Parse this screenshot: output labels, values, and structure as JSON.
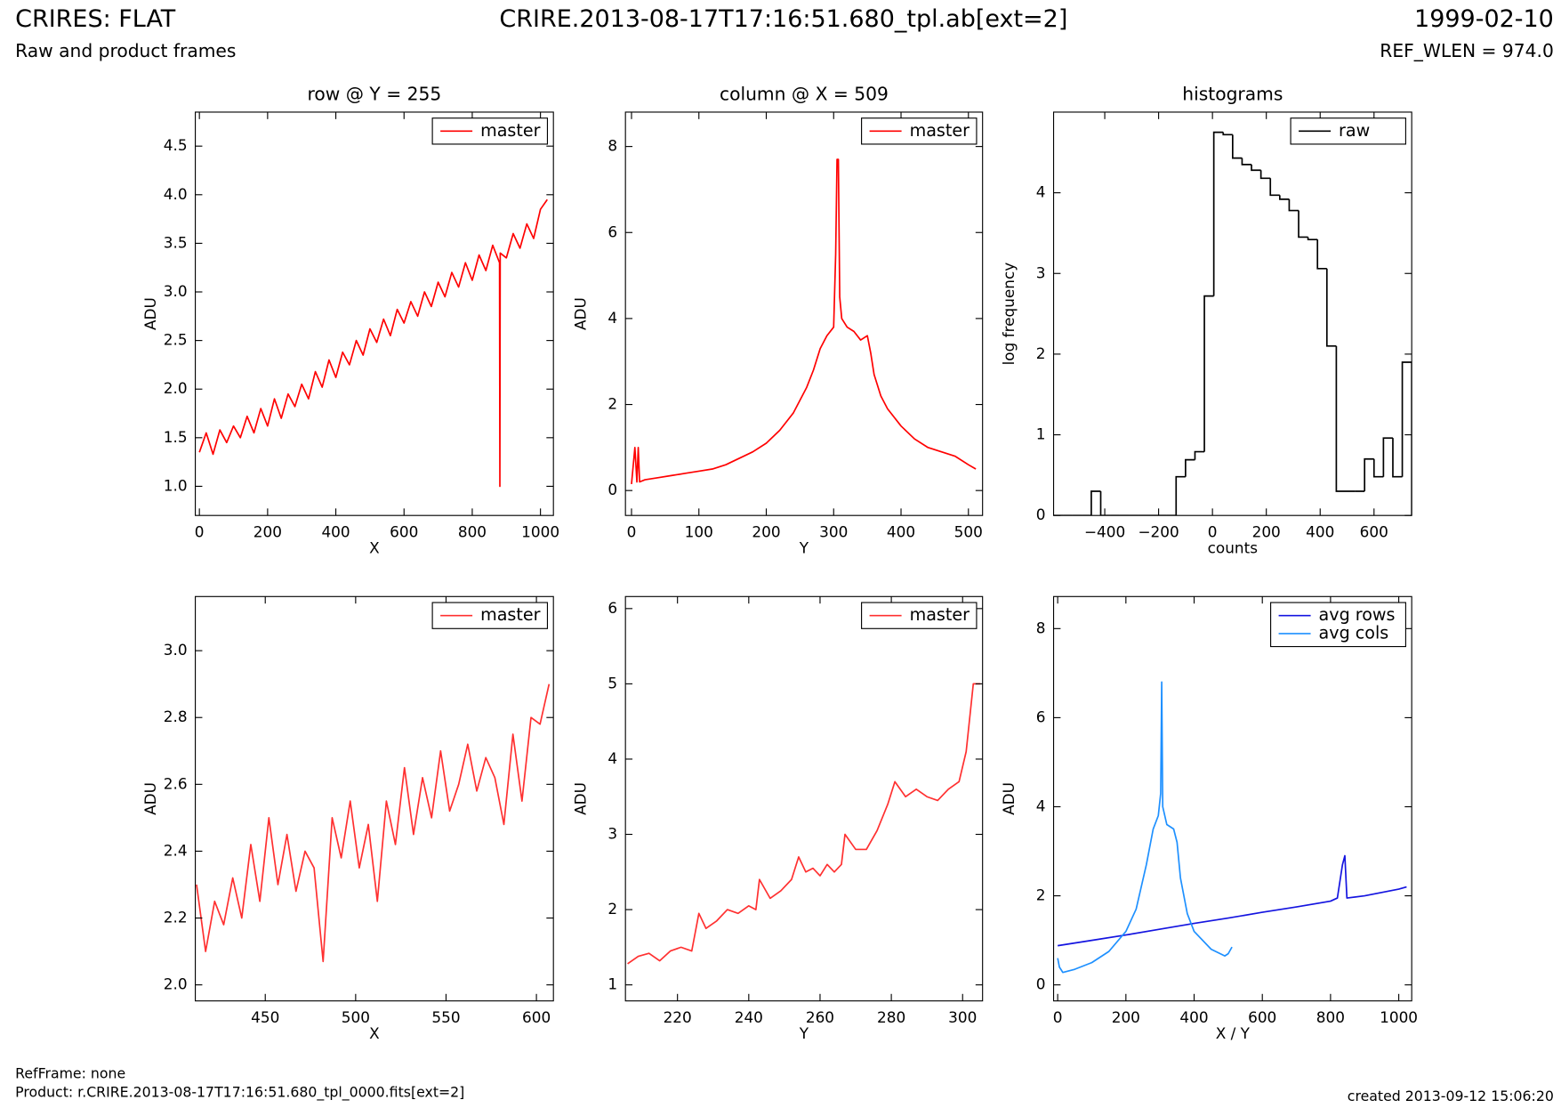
{
  "header": {
    "title": "CRIRES: FLAT",
    "subtitle": "Raw and product frames",
    "file": "CRIRE.2013-08-17T17:16:51.680_tpl.ab[ext=2]",
    "date": "1999-02-10",
    "ref_wlen": "REF_WLEN = 974.0"
  },
  "footer": {
    "ref_frame": "RefFrame: none",
    "product": "Product: r.CRIRE.2013-08-17T17:16:51.680_tpl_0000.fits[ext=2]",
    "created": "created 2013-09-12 15:06:20"
  },
  "chart_data": [
    {
      "type": "line",
      "title": "row @ Y = 255",
      "x_label": "X",
      "y_label": "ADU",
      "legend": "upper right",
      "xlim": [
        -12,
        1038
      ],
      "ylim": [
        0.7,
        4.85
      ],
      "xticks": [
        0,
        200,
        400,
        600,
        800,
        1000
      ],
      "yticks": [
        {
          "value": 1,
          "label": "1.0"
        },
        1.5,
        {
          "value": 2,
          "label": "2.0"
        },
        2.5,
        {
          "value": 3,
          "label": "3.0"
        },
        3.5,
        {
          "value": 4,
          "label": "4.0"
        },
        4.5
      ],
      "series": [
        {
          "name": "master",
          "color": "#ff0000",
          "x": [
            0,
            20,
            40,
            60,
            80,
            100,
            120,
            140,
            160,
            180,
            200,
            220,
            240,
            260,
            280,
            300,
            320,
            340,
            360,
            380,
            400,
            420,
            440,
            460,
            480,
            500,
            520,
            540,
            560,
            580,
            600,
            620,
            640,
            660,
            680,
            700,
            720,
            740,
            760,
            780,
            800,
            820,
            840,
            860,
            880,
            881,
            882,
            900,
            920,
            940,
            960,
            980,
            1000,
            1020
          ],
          "values": [
            1.35,
            1.55,
            1.33,
            1.58,
            1.45,
            1.62,
            1.5,
            1.72,
            1.55,
            1.8,
            1.62,
            1.9,
            1.7,
            1.95,
            1.82,
            2.05,
            1.9,
            2.18,
            2.02,
            2.3,
            2.12,
            2.38,
            2.25,
            2.5,
            2.35,
            2.62,
            2.48,
            2.72,
            2.55,
            2.82,
            2.68,
            2.9,
            2.75,
            3.0,
            2.85,
            3.1,
            2.95,
            3.2,
            3.05,
            3.3,
            3.12,
            3.38,
            3.22,
            3.48,
            3.3,
            1.0,
            3.4,
            3.35,
            3.6,
            3.45,
            3.7,
            3.55,
            3.85,
            3.95
          ]
        }
      ]
    },
    {
      "type": "line",
      "title": "column @ X = 509",
      "x_label": "Y",
      "y_label": "ADU",
      "legend": "upper right",
      "xlim": [
        -9,
        521
      ],
      "ylim": [
        -0.58,
        8.8
      ],
      "xticks": [
        0,
        100,
        200,
        300,
        400,
        500
      ],
      "yticks": [
        0,
        2,
        4,
        6,
        8
      ],
      "series": [
        {
          "name": "master",
          "color": "#ff0000",
          "x": [
            0,
            5,
            8,
            10,
            12,
            20,
            40,
            60,
            80,
            100,
            120,
            140,
            160,
            180,
            200,
            220,
            240,
            260,
            270,
            280,
            290,
            300,
            303,
            305,
            307,
            309,
            312,
            320,
            330,
            340,
            350,
            355,
            360,
            370,
            380,
            400,
            420,
            440,
            460,
            480,
            500,
            511
          ],
          "values": [
            0.15,
            1.0,
            0.2,
            1.0,
            0.2,
            0.25,
            0.3,
            0.35,
            0.4,
            0.45,
            0.5,
            0.6,
            0.75,
            0.9,
            1.1,
            1.4,
            1.8,
            2.4,
            2.8,
            3.3,
            3.6,
            3.8,
            5.5,
            7.7,
            7.7,
            4.5,
            4.0,
            3.8,
            3.7,
            3.5,
            3.6,
            3.2,
            2.7,
            2.2,
            1.9,
            1.5,
            1.2,
            1.0,
            0.9,
            0.8,
            0.6,
            0.5
          ]
        }
      ]
    },
    {
      "type": "histogram",
      "title": "histograms",
      "x_label": "counts",
      "y_label": "log frequency",
      "legend": "upper right",
      "xlim": [
        -590,
        740
      ],
      "ylim": [
        0,
        5.0
      ],
      "xticks": [
        {
          "value": -400,
          "label": "−400"
        },
        {
          "value": -200,
          "label": "−200"
        },
        0,
        200,
        400,
        600
      ],
      "yticks": [
        0,
        1,
        2,
        3,
        4
      ],
      "bins": [
        -590,
        -555,
        -520,
        -485,
        -450,
        -415,
        -380,
        -345,
        -310,
        -275,
        -240,
        -205,
        -170,
        -135,
        -100,
        -65,
        -30,
        5,
        40,
        75,
        110,
        145,
        180,
        215,
        250,
        285,
        320,
        355,
        390,
        425,
        460,
        495,
        530,
        565,
        600,
        635,
        670,
        705,
        740
      ],
      "series": [
        {
          "name": "raw",
          "color": "#000000",
          "values": [
            0,
            0,
            0,
            0,
            0.3,
            0,
            0,
            0,
            0,
            0,
            0,
            0,
            0,
            0.48,
            0.69,
            0.79,
            2.72,
            4.75,
            4.72,
            4.43,
            4.35,
            4.28,
            4.18,
            3.97,
            3.92,
            3.78,
            3.45,
            3.42,
            3.06,
            2.1,
            0.3,
            0.3,
            0.3,
            0.7,
            0.48,
            0.96,
            0.48,
            1.9
          ]
        }
      ]
    },
    {
      "type": "line",
      "x_label": "X",
      "y_label": "ADU",
      "legend": "upper right",
      "xlim": [
        411.3,
        609.4
      ],
      "ylim": [
        1.952,
        3.162
      ],
      "xticks": [
        450,
        500,
        550,
        600
      ],
      "yticks": [
        {
          "value": 2,
          "label": "2.0"
        },
        2.2,
        2.4,
        2.6,
        2.8,
        {
          "value": 3,
          "label": "3.0"
        }
      ],
      "series": [
        {
          "name": "master",
          "color": "#ff3030",
          "x": [
            412,
            417,
            422,
            427,
            432,
            437,
            442,
            447,
            452,
            457,
            462,
            467,
            472,
            477,
            482,
            487,
            492,
            497,
            502,
            507,
            512,
            517,
            522,
            527,
            532,
            537,
            542,
            547,
            552,
            557,
            562,
            567,
            572,
            577,
            582,
            587,
            592,
            597,
            602,
            607
          ],
          "values": [
            2.3,
            2.1,
            2.25,
            2.18,
            2.32,
            2.2,
            2.42,
            2.25,
            2.5,
            2.3,
            2.45,
            2.28,
            2.4,
            2.35,
            2.07,
            2.5,
            2.38,
            2.55,
            2.35,
            2.48,
            2.25,
            2.55,
            2.42,
            2.65,
            2.45,
            2.62,
            2.5,
            2.7,
            2.52,
            2.6,
            2.72,
            2.58,
            2.68,
            2.62,
            2.48,
            2.75,
            2.55,
            2.8,
            2.78,
            2.9
          ]
        }
      ]
    },
    {
      "type": "line",
      "x_label": "Y",
      "y_label": "ADU",
      "legend": "upper right",
      "xlim": [
        205.4,
        305.6
      ],
      "ylim": [
        0.787,
        6.16
      ],
      "xticks": [
        220,
        240,
        260,
        280,
        300
      ],
      "yticks": [
        1,
        2,
        3,
        4,
        5,
        6
      ],
      "series": [
        {
          "name": "master",
          "color": "#ff3030",
          "x": [
            206,
            209,
            212,
            215,
            218,
            221,
            224,
            226,
            228,
            231,
            234,
            237,
            240,
            242,
            243,
            246,
            249,
            252,
            254,
            256,
            258,
            260,
            262,
            264,
            266,
            267,
            270,
            273,
            276,
            279,
            281,
            284,
            287,
            290,
            293,
            296,
            299,
            301,
            303,
            305
          ],
          "values": [
            1.28,
            1.38,
            1.42,
            1.32,
            1.45,
            1.5,
            1.45,
            1.95,
            1.75,
            1.85,
            2.0,
            1.95,
            2.05,
            2.0,
            2.4,
            2.15,
            2.25,
            2.4,
            2.7,
            2.5,
            2.55,
            2.45,
            2.6,
            2.5,
            2.6,
            3.0,
            2.8,
            2.8,
            3.05,
            3.4,
            3.7,
            3.5,
            3.6,
            3.5,
            3.45,
            3.6,
            3.7,
            4.1,
            5.0,
            5.0
          ]
        }
      ]
    },
    {
      "type": "line",
      "x_label": "X / Y",
      "y_label": "ADU",
      "legend": "upper right",
      "xlim": [
        -12,
        1038
      ],
      "ylim": [
        -0.36,
        8.72
      ],
      "xticks": [
        0,
        200,
        400,
        600,
        800,
        1000
      ],
      "yticks": [
        0,
        2,
        4,
        6,
        8
      ],
      "series": [
        {
          "name": "avg rows",
          "color": "#1414e0",
          "x": [
            0,
            100,
            200,
            300,
            400,
            500,
            600,
            700,
            800,
            820,
            835,
            842,
            848,
            900,
            1000,
            1023
          ],
          "values": [
            0.88,
            1.0,
            1.12,
            1.25,
            1.38,
            1.5,
            1.63,
            1.75,
            1.88,
            1.95,
            2.7,
            2.9,
            1.95,
            2.0,
            2.15,
            2.2
          ]
        },
        {
          "name": "avg cols",
          "color": "#1e90ff",
          "x": [
            0,
            5,
            15,
            50,
            100,
            150,
            200,
            230,
            260,
            280,
            295,
            302,
            305,
            308,
            320,
            340,
            350,
            360,
            380,
            400,
            450,
            490,
            500,
            511
          ],
          "values": [
            0.6,
            0.4,
            0.28,
            0.35,
            0.5,
            0.75,
            1.2,
            1.7,
            2.7,
            3.5,
            3.8,
            4.3,
            6.8,
            4.0,
            3.6,
            3.5,
            3.2,
            2.4,
            1.6,
            1.2,
            0.8,
            0.65,
            0.7,
            0.85
          ]
        }
      ]
    }
  ]
}
